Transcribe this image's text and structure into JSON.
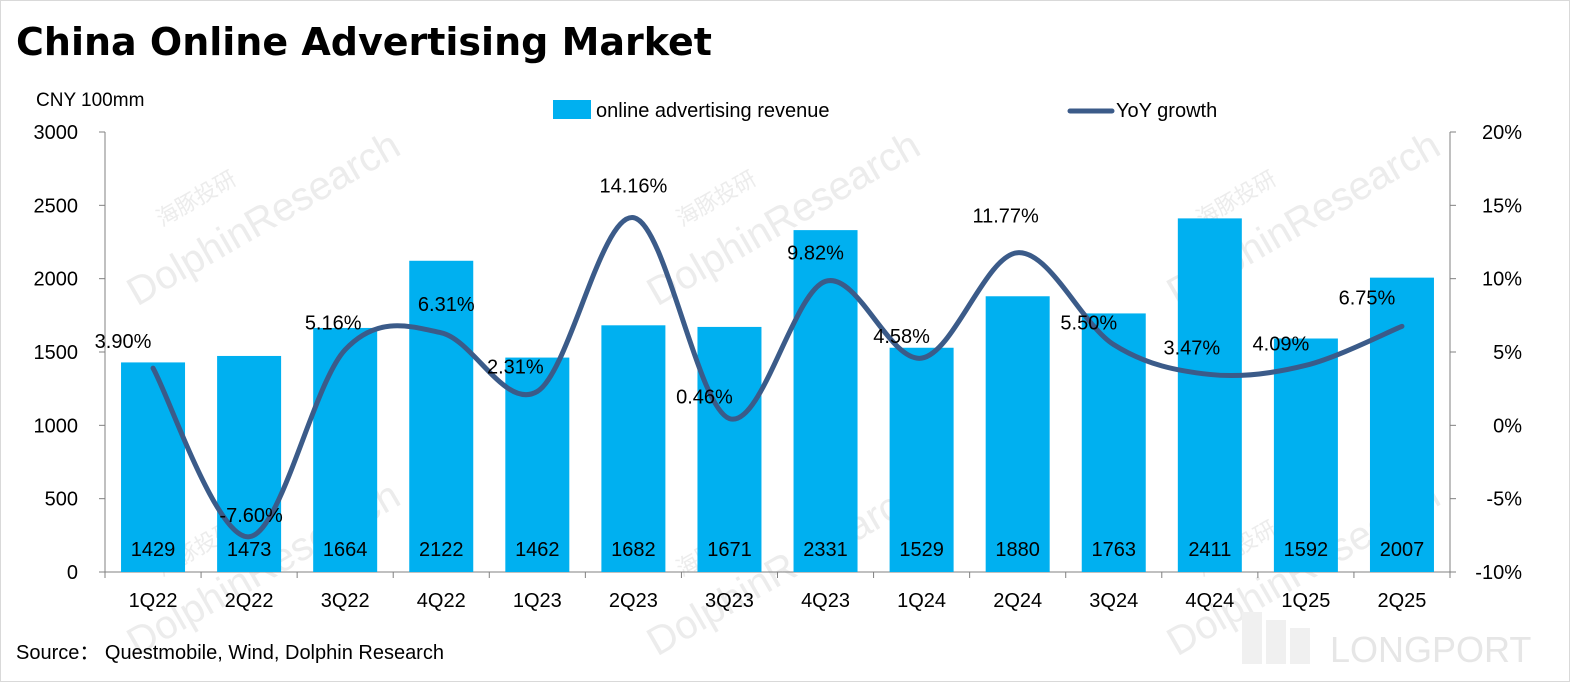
{
  "chart_data": {
    "type": "bar+line",
    "title": "China Online Advertising Market",
    "unit_label": "CNY 100mm",
    "categories": [
      "1Q22",
      "2Q22",
      "3Q22",
      "4Q22",
      "1Q23",
      "2Q23",
      "3Q23",
      "4Q23",
      "1Q24",
      "2Q24",
      "3Q24",
      "4Q24",
      "1Q25",
      "2Q25"
    ],
    "series": [
      {
        "name": "online advertising revenue",
        "type": "bar",
        "axis": "left",
        "values": [
          1429,
          1473,
          1664,
          2122,
          1462,
          1682,
          1671,
          2331,
          1529,
          1880,
          1763,
          2411,
          1592,
          2007
        ]
      },
      {
        "name": "YoY growth",
        "type": "line",
        "axis": "right",
        "values": [
          3.9,
          -7.6,
          5.16,
          6.31,
          2.31,
          14.16,
          0.46,
          9.82,
          4.58,
          11.77,
          5.5,
          3.47,
          4.09,
          6.75
        ],
        "labels": [
          "3.90%",
          "-7.60%",
          "5.16%",
          "6.31%",
          "2.31%",
          "14.16%",
          "0.46%",
          "9.82%",
          "4.58%",
          "11.77%",
          "5.50%",
          "3.47%",
          "4.09%",
          "6.75%"
        ]
      }
    ],
    "y_left": {
      "min": 0,
      "max": 3000,
      "ticks": [
        0,
        500,
        1000,
        1500,
        2000,
        2500,
        3000
      ],
      "tick_labels": [
        "0",
        "500",
        "1000",
        "1500",
        "2000",
        "2500",
        "3000"
      ]
    },
    "y_right": {
      "min": -10,
      "max": 20,
      "ticks": [
        -10,
        -5,
        0,
        5,
        10,
        15,
        20
      ],
      "tick_labels": [
        "-10%",
        "-5%",
        "0%",
        "5%",
        "10%",
        "15%",
        "20%"
      ]
    },
    "legend_position": "top-center",
    "source": "Source：  Questmobile, Wind, Dolphin Research",
    "colors": {
      "bar": "#00B0F0",
      "line": "#3B5B89",
      "axis": "#808080"
    }
  },
  "watermark": {
    "brand": "DolphinResearch",
    "cn": "海豚投研",
    "corner": "LONGPORT"
  }
}
